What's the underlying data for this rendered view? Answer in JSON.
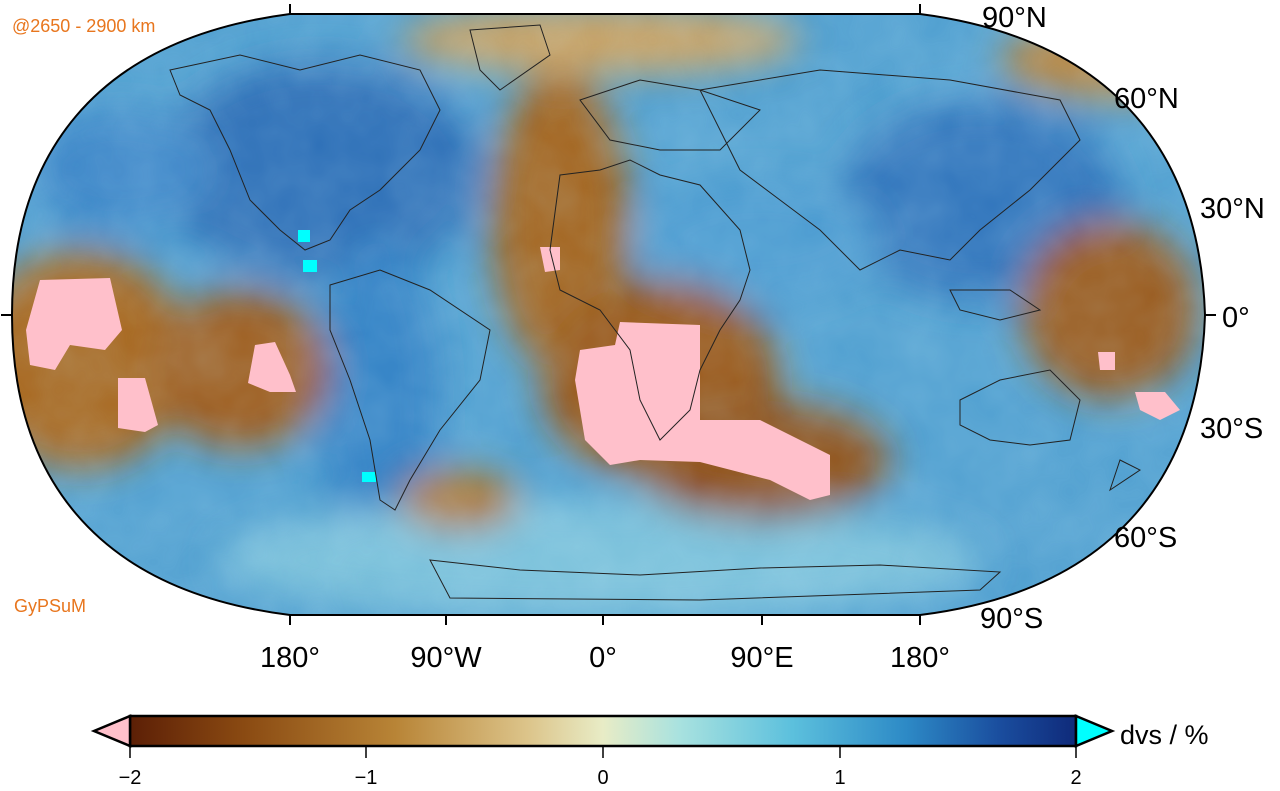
{
  "map": {
    "depth_label": "@2650 - 2900 km",
    "model_name": "GyPSuM",
    "projection": "Robinson (global)",
    "lat_labels": [
      "90°N",
      "60°N",
      "30°N",
      "0°",
      "30°S",
      "60°S",
      "90°S"
    ],
    "lon_labels": [
      "180°",
      "90°W",
      "0°",
      "90°E",
      "180°"
    ],
    "features": {
      "pink_anomaly_color": "#ffc0cb",
      "cyan_anomaly_color": "#00ffff",
      "coastline_color": "#222222"
    }
  },
  "colorbar": {
    "label": "dvs / %",
    "ticks": [
      "−2",
      "−1",
      "0",
      "1",
      "2"
    ],
    "range": [
      -2,
      2
    ],
    "under_color": "#ffc0cb",
    "over_color": "#00ffff",
    "stops": [
      "#5c1f06",
      "#8a4a12",
      "#b88436",
      "#dcc48a",
      "#e8ecc6",
      "#a9e2df",
      "#5cc0dd",
      "#2d8ac6",
      "#1a4d9e",
      "#0f2a7a"
    ]
  }
}
